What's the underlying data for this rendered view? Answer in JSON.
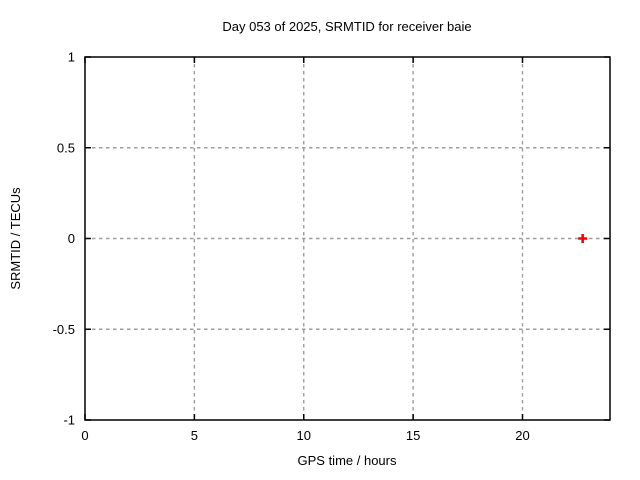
{
  "chart_data": {
    "type": "scatter",
    "title": "Day 053 of 2025, SRMTID for receiver baie",
    "xlabel": "GPS time / hours",
    "ylabel": "SRMTID / TECUs",
    "xlim": [
      0,
      24
    ],
    "ylim": [
      -1,
      1
    ],
    "x_ticks": [
      0,
      5,
      10,
      15,
      20
    ],
    "x_tick_labels": [
      "0",
      "5",
      "10",
      "15",
      "20"
    ],
    "y_ticks": [
      -1,
      -0.5,
      0,
      0.5,
      1
    ],
    "y_tick_labels": [
      "-1",
      "-0.5",
      "0",
      "0.5",
      "1"
    ],
    "grid": true,
    "grid_style": "dashed",
    "legend_position": "none",
    "series": [
      {
        "name": "SRMTID",
        "marker": "plus",
        "color": "#ff0000",
        "points": [
          {
            "x": 22.75,
            "y": 0.0
          }
        ]
      }
    ]
  },
  "colors": {
    "background": "#ffffff",
    "plot_border": "#000000",
    "grid_line": "#9e9e9e",
    "text": "#000000",
    "marker": "#ff0000"
  }
}
